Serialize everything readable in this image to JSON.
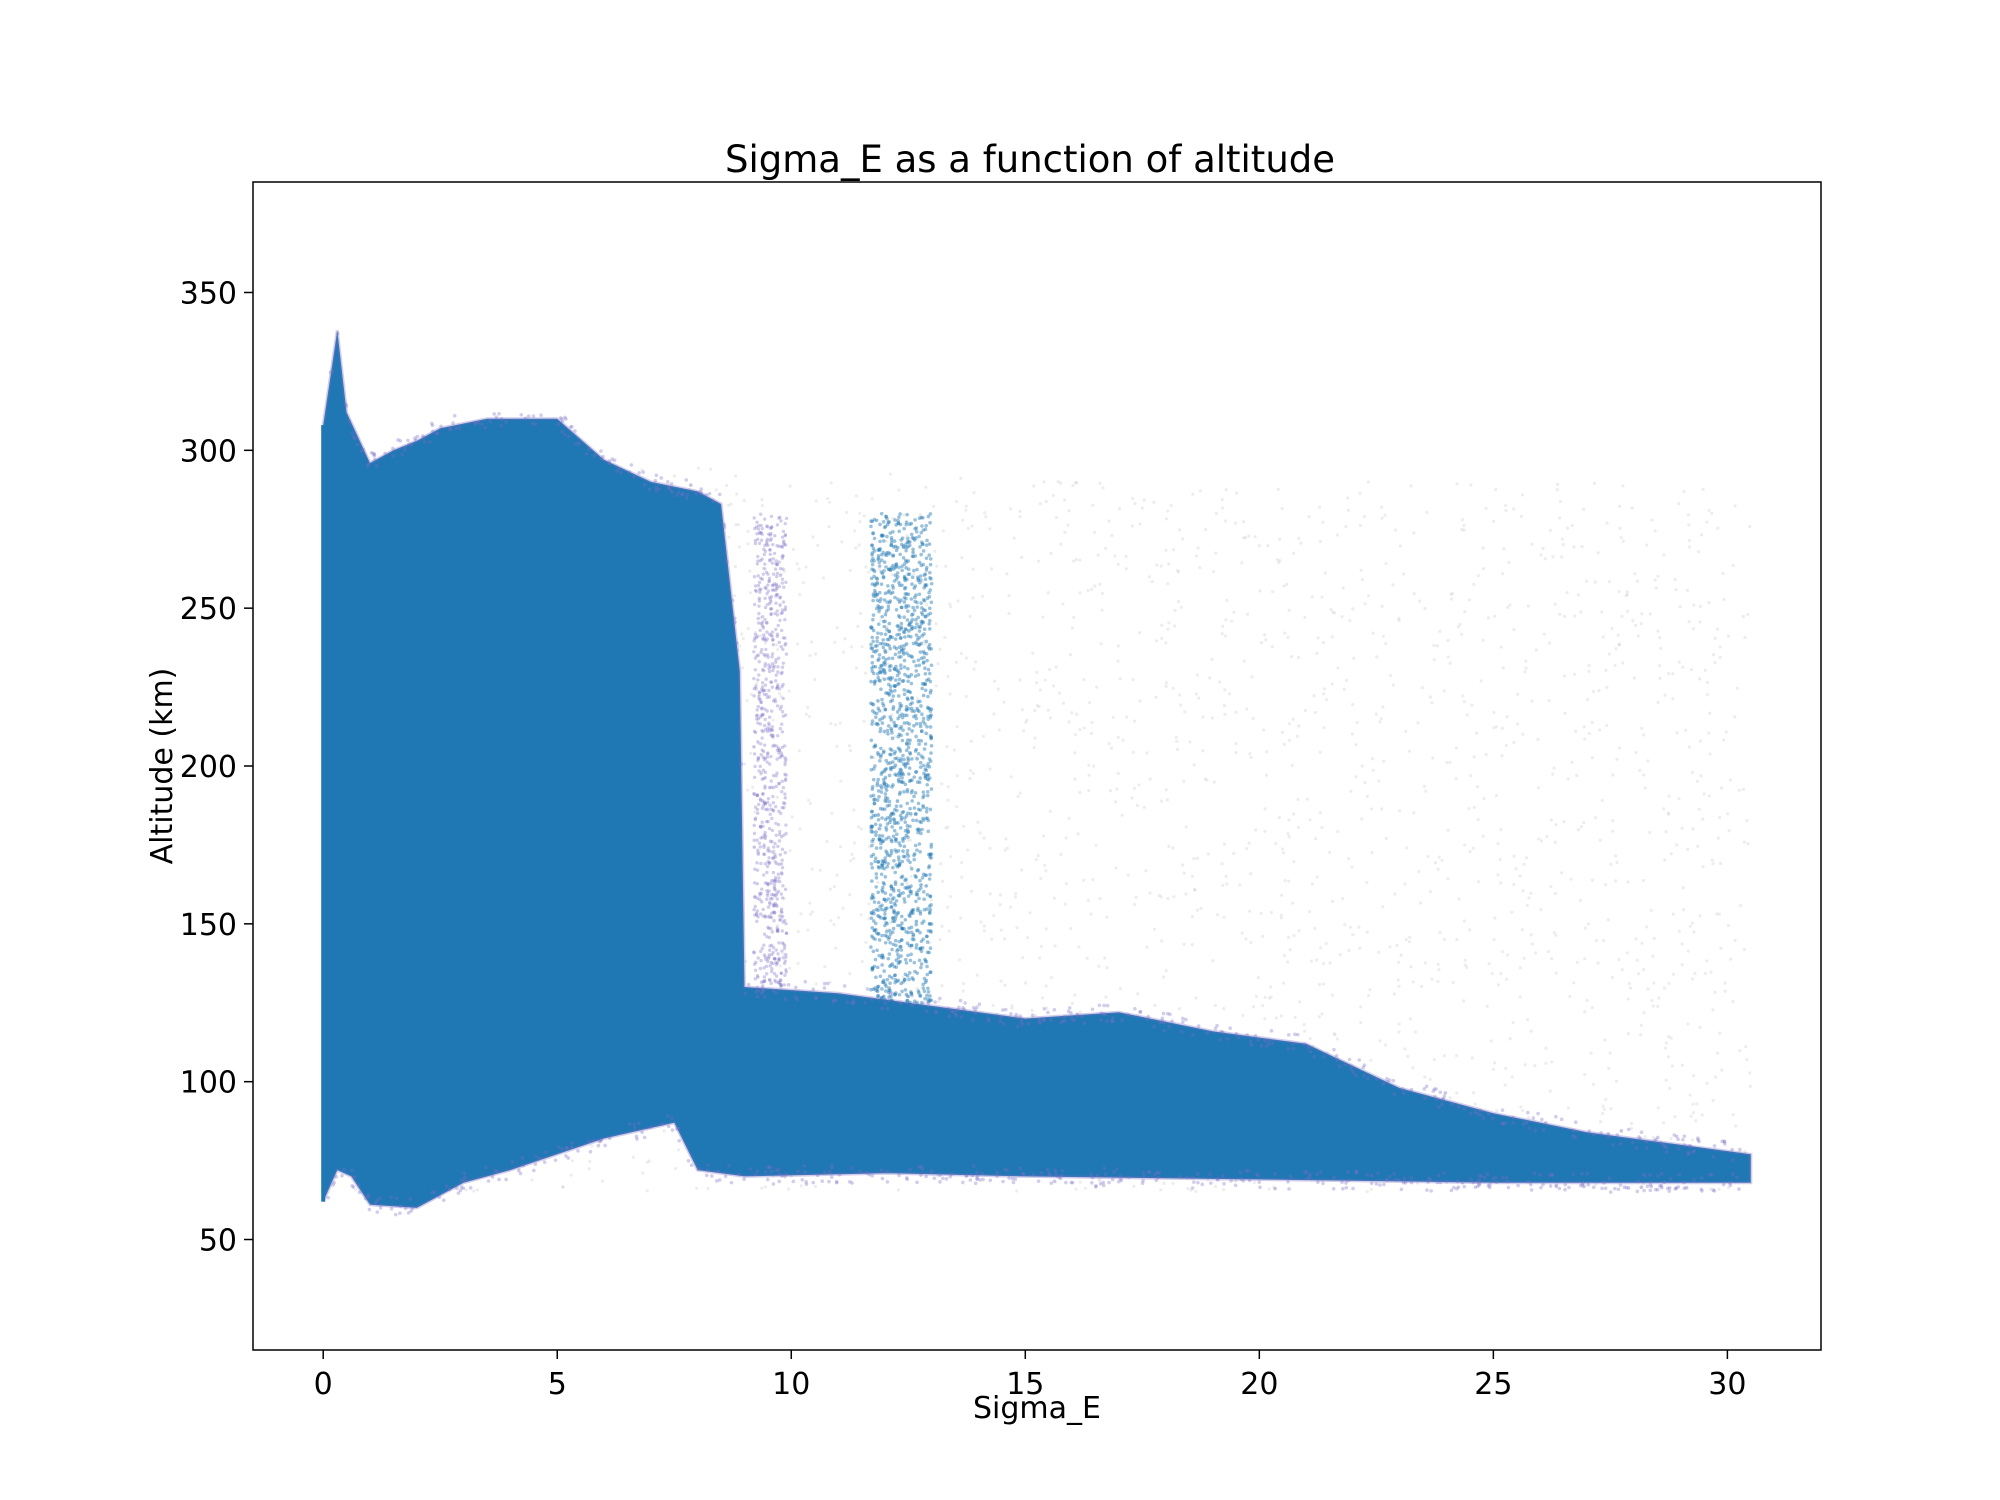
{
  "chart_data": {
    "type": "scatter",
    "title": "Sigma_E as a function of altitude",
    "xlabel": "Sigma_E",
    "ylabel": "Altitude (km)",
    "xlim": [
      -1.5,
      32.0
    ],
    "ylim": [
      15,
      385
    ],
    "xticks": [
      0,
      5,
      10,
      15,
      20,
      25,
      30
    ],
    "yticks": [
      50,
      100,
      150,
      200,
      250,
      300,
      350
    ],
    "grid": false,
    "legend": "none",
    "colors": {
      "points": "#1f77b4",
      "faint_points": "#9a9a9a",
      "edge_points": "#7b6fc7"
    },
    "series": [
      {
        "description_level": "dense",
        "upper_envelope": [
          {
            "x": 0.0,
            "y": 308
          },
          {
            "x": 0.3,
            "y": 338
          },
          {
            "x": 0.5,
            "y": 312
          },
          {
            "x": 1.0,
            "y": 296
          },
          {
            "x": 1.5,
            "y": 300
          },
          {
            "x": 2.0,
            "y": 303
          },
          {
            "x": 2.5,
            "y": 307
          },
          {
            "x": 3.5,
            "y": 310
          },
          {
            "x": 5.0,
            "y": 310
          },
          {
            "x": 6.0,
            "y": 297
          },
          {
            "x": 7.0,
            "y": 290
          },
          {
            "x": 8.0,
            "y": 287
          },
          {
            "x": 8.5,
            "y": 283
          },
          {
            "x": 8.9,
            "y": 230
          },
          {
            "x": 9.0,
            "y": 130
          },
          {
            "x": 11.0,
            "y": 128
          },
          {
            "x": 13.0,
            "y": 124
          },
          {
            "x": 15.0,
            "y": 120
          },
          {
            "x": 17.0,
            "y": 122
          },
          {
            "x": 19.0,
            "y": 116
          },
          {
            "x": 21.0,
            "y": 112
          },
          {
            "x": 23.0,
            "y": 98
          },
          {
            "x": 25.0,
            "y": 90
          },
          {
            "x": 27.0,
            "y": 84
          },
          {
            "x": 29.0,
            "y": 80
          },
          {
            "x": 30.5,
            "y": 77
          }
        ],
        "lower_envelope": [
          {
            "x": 0.0,
            "y": 62
          },
          {
            "x": 0.3,
            "y": 72
          },
          {
            "x": 0.6,
            "y": 70
          },
          {
            "x": 1.0,
            "y": 61
          },
          {
            "x": 2.0,
            "y": 60
          },
          {
            "x": 3.0,
            "y": 68
          },
          {
            "x": 4.0,
            "y": 72
          },
          {
            "x": 5.0,
            "y": 77
          },
          {
            "x": 6.0,
            "y": 82
          },
          {
            "x": 7.5,
            "y": 87
          },
          {
            "x": 8.0,
            "y": 72
          },
          {
            "x": 9.0,
            "y": 70
          },
          {
            "x": 12.0,
            "y": 71
          },
          {
            "x": 15.0,
            "y": 70
          },
          {
            "x": 20.0,
            "y": 69
          },
          {
            "x": 25.0,
            "y": 68
          },
          {
            "x": 30.5,
            "y": 68
          }
        ]
      },
      {
        "description_level": "stripe",
        "x_range": [
          11.7,
          13.0
        ],
        "y_range": [
          125,
          280
        ]
      },
      {
        "description_level": "faint",
        "x_range": [
          0.0,
          30.5
        ],
        "y_range": [
          65,
          300
        ]
      }
    ]
  }
}
